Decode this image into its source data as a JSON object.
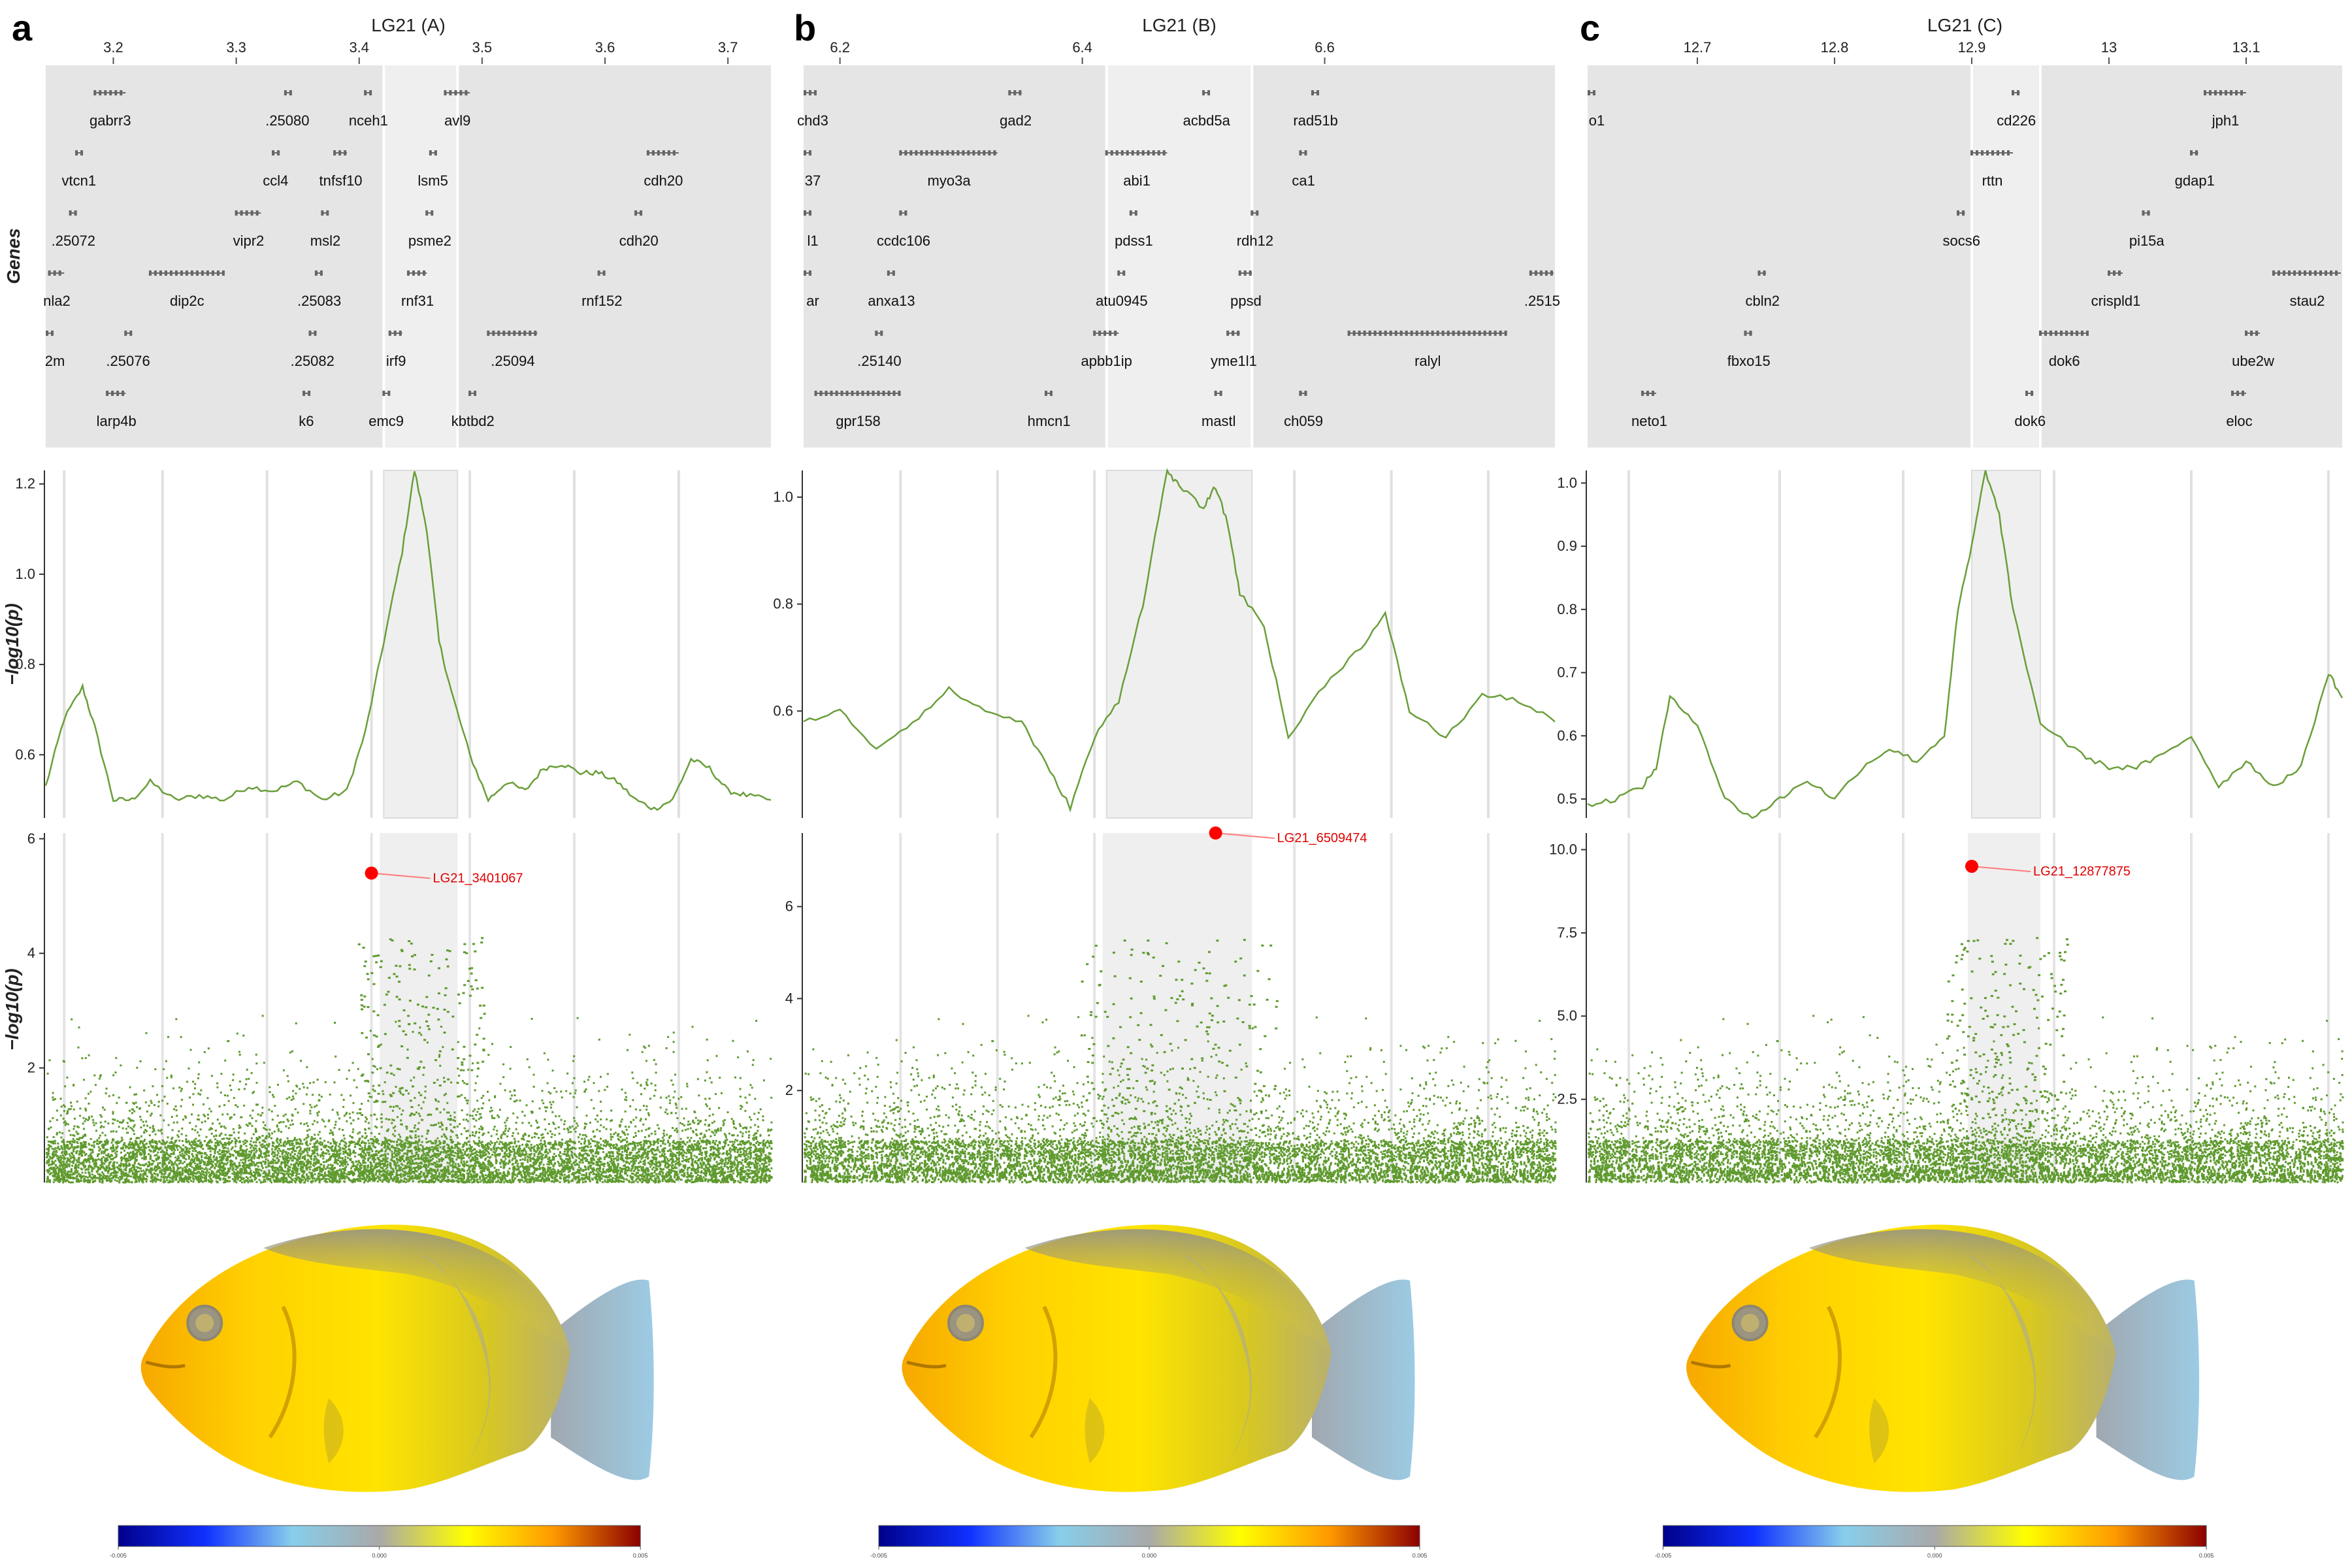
{
  "figure": {
    "y_axis_label_genes": "Genes",
    "y_axis_label_p": "−log10(p)",
    "colorbar_ticks": [
      "-0.005",
      "0.000",
      "0.005"
    ],
    "colorbar_colors": [
      "#00008b",
      "#1030ff",
      "#87ceeb",
      "#a9a9a9",
      "#ffff00",
      "#ff9900",
      "#8b0000"
    ]
  },
  "chart_data": [
    {
      "panel_label": "a",
      "title": "LG21 (A)",
      "type": "composite",
      "x_ticks": [
        3.2,
        3.3,
        3.4,
        3.5,
        3.6,
        3.7
      ],
      "xlim": [
        3.145,
        3.735
      ],
      "highlight_region": [
        3.42,
        3.48
      ],
      "gene_rows": [
        [
          {
            "label": "gabrr3",
            "start": 3.185,
            "end": 3.21
          },
          {
            "label": ".25080",
            "start": 3.34,
            "end": 3.343
          },
          {
            "label": "nceh1",
            "start": 3.405,
            "end": 3.41
          },
          {
            "label": "avl9",
            "start": 3.47,
            "end": 3.49
          }
        ],
        [
          {
            "label": "vtcn1",
            "start": 3.17,
            "end": 3.174
          },
          {
            "label": "ccl4",
            "start": 3.33,
            "end": 3.334
          },
          {
            "label": "tnfsf10",
            "start": 3.38,
            "end": 3.39
          },
          {
            "label": "lsm5",
            "start": 3.458,
            "end": 3.462
          },
          {
            "label": "cdh20",
            "start": 3.635,
            "end": 3.66
          }
        ],
        [
          {
            "label": ".25072",
            "start": 3.165,
            "end": 3.17
          },
          {
            "label": "vipr2",
            "start": 3.3,
            "end": 3.32
          },
          {
            "label": "msl2",
            "start": 3.37,
            "end": 3.375
          },
          {
            "label": "psme2",
            "start": 3.455,
            "end": 3.46
          },
          {
            "label": "cdh20",
            "start": 3.625,
            "end": 3.63
          }
        ],
        [
          {
            "label": "nla2",
            "start": 3.148,
            "end": 3.16
          },
          {
            "label": "dip2c",
            "start": 3.23,
            "end": 3.29
          },
          {
            "label": ".25083",
            "start": 3.365,
            "end": 3.37
          },
          {
            "label": "rnf31",
            "start": 3.44,
            "end": 3.455
          },
          {
            "label": "rnf152",
            "start": 3.595,
            "end": 3.6
          }
        ],
        [
          {
            "label": "2m",
            "start": 3.145,
            "end": 3.15
          },
          {
            "label": ".25076",
            "start": 3.21,
            "end": 3.214
          },
          {
            "label": ".25082",
            "start": 3.36,
            "end": 3.364
          },
          {
            "label": "irf9",
            "start": 3.425,
            "end": 3.435
          },
          {
            "label": ".25094",
            "start": 3.505,
            "end": 3.545
          }
        ],
        [
          {
            "label": "larp4b",
            "start": 3.195,
            "end": 3.21
          },
          {
            "label": "k6",
            "start": 3.355,
            "end": 3.359
          },
          {
            "label": "emc9",
            "start": 3.42,
            "end": 3.424
          },
          {
            "label": "kbtbd2",
            "start": 3.49,
            "end": 3.495
          }
        ]
      ],
      "line_series": {
        "ylim": [
          0.46,
          1.23
        ],
        "y_ticks": [
          0.6,
          0.8,
          1.0,
          1.2
        ],
        "x": [
          3.145,
          3.16,
          3.175,
          3.185,
          3.2,
          3.215,
          3.23,
          3.25,
          3.27,
          3.29,
          3.31,
          3.33,
          3.35,
          3.37,
          3.39,
          3.405,
          3.42,
          3.435,
          3.445,
          3.455,
          3.465,
          3.475,
          3.49,
          3.505,
          3.52,
          3.535,
          3.55,
          3.565,
          3.58,
          3.595,
          3.61,
          3.625,
          3.64,
          3.655,
          3.67,
          3.685,
          3.7,
          3.715,
          3.735
        ],
        "y": [
          0.53,
          0.68,
          0.75,
          0.66,
          0.5,
          0.5,
          0.54,
          0.5,
          0.51,
          0.5,
          0.53,
          0.52,
          0.54,
          0.5,
          0.52,
          0.65,
          0.85,
          1.05,
          1.23,
          1.1,
          0.85,
          0.74,
          0.6,
          0.5,
          0.54,
          0.52,
          0.57,
          0.58,
          0.56,
          0.56,
          0.54,
          0.5,
          0.48,
          0.5,
          0.59,
          0.57,
          0.52,
          0.51,
          0.5
        ]
      },
      "scatter": {
        "ylim": [
          0,
          6.1
        ],
        "y_ticks": [
          2,
          4,
          6
        ],
        "lead_snp": {
          "label": "LG21_3401067",
          "x": 3.41,
          "y": 5.4
        },
        "vertical_lines": [
          3.16,
          3.24,
          3.325,
          3.41,
          3.49,
          3.575,
          3.66
        ]
      }
    },
    {
      "panel_label": "b",
      "title": "LG21 (B)",
      "type": "composite",
      "x_ticks": [
        6.2,
        6.4,
        6.6
      ],
      "xlim": [
        6.17,
        6.79
      ],
      "highlight_region": [
        6.42,
        6.54
      ],
      "gene_rows": [
        [
          {
            "label": "chd3",
            "start": 6.17,
            "end": 6.18
          },
          {
            "label": "gad2",
            "start": 6.34,
            "end": 6.35
          },
          {
            "label": "acbd5a",
            "start": 6.5,
            "end": 6.505
          },
          {
            "label": "rad51b",
            "start": 6.59,
            "end": 6.595
          }
        ],
        [
          {
            "label": "37",
            "start": 6.17,
            "end": 6.172
          },
          {
            "label": "myo3a",
            "start": 6.25,
            "end": 6.33
          },
          {
            "label": "abi1",
            "start": 6.42,
            "end": 6.47
          },
          {
            "label": "ca1",
            "start": 6.58,
            "end": 6.585
          }
        ],
        [
          {
            "label": "l1",
            "start": 6.17,
            "end": 6.172
          },
          {
            "label": "ccdc106",
            "start": 6.25,
            "end": 6.255
          },
          {
            "label": "pdss1",
            "start": 6.44,
            "end": 6.445
          },
          {
            "label": "rdh12",
            "start": 6.54,
            "end": 6.545
          }
        ],
        [
          {
            "label": "ar",
            "start": 6.17,
            "end": 6.172
          },
          {
            "label": "anxa13",
            "start": 6.24,
            "end": 6.245
          },
          {
            "label": "atu0945",
            "start": 6.43,
            "end": 6.435
          },
          {
            "label": "ppsd",
            "start": 6.53,
            "end": 6.54
          },
          {
            "label": ".2515",
            "start": 6.77,
            "end": 6.79
          }
        ],
        [
          {
            "label": ".25140",
            "start": 6.23,
            "end": 6.235
          },
          {
            "label": "apbb1ip",
            "start": 6.41,
            "end": 6.43
          },
          {
            "label": "yme1l1",
            "start": 6.52,
            "end": 6.53
          },
          {
            "label": "ralyl",
            "start": 6.62,
            "end": 6.75
          }
        ],
        [
          {
            "label": "gpr158",
            "start": 6.18,
            "end": 6.25
          },
          {
            "label": "hmcn1",
            "start": 6.37,
            "end": 6.375
          },
          {
            "label": "mastl",
            "start": 6.51,
            "end": 6.515
          },
          {
            "label": "ch059",
            "start": 6.58,
            "end": 6.585
          }
        ]
      ],
      "line_series": {
        "ylim": [
          0.4,
          1.05
        ],
        "y_ticks": [
          0.6,
          0.8,
          1.0
        ],
        "x": [
          6.17,
          6.2,
          6.23,
          6.26,
          6.29,
          6.32,
          6.35,
          6.37,
          6.39,
          6.41,
          6.43,
          6.45,
          6.47,
          6.48,
          6.5,
          6.51,
          6.52,
          6.53,
          6.55,
          6.57,
          6.6,
          6.63,
          6.65,
          6.67,
          6.7,
          6.73,
          6.76,
          6.79
        ],
        "y": [
          0.58,
          0.6,
          0.53,
          0.58,
          0.64,
          0.6,
          0.58,
          0.5,
          0.42,
          0.55,
          0.62,
          0.8,
          1.05,
          1.02,
          0.98,
          1.02,
          0.95,
          0.82,
          0.76,
          0.55,
          0.65,
          0.72,
          0.78,
          0.6,
          0.55,
          0.63,
          0.62,
          0.58
        ]
      },
      "scatter": {
        "ylim": [
          0,
          7.6
        ],
        "y_ticks": [
          2,
          4,
          6
        ],
        "lead_snp": {
          "label": "LG21_6509474",
          "x": 6.51,
          "y": 7.6
        },
        "vertical_lines": [
          6.25,
          6.33,
          6.41,
          6.49,
          6.575,
          6.655,
          6.735
        ]
      }
    },
    {
      "panel_label": "c",
      "title": "LG21 (C)",
      "type": "composite",
      "x_ticks": [
        12.7,
        12.8,
        12.9,
        13,
        13.1
      ],
      "xlim": [
        12.62,
        13.17
      ],
      "highlight_region": [
        12.9,
        12.95
      ],
      "gene_rows": [
        [
          {
            "label": "o1",
            "start": 12.62,
            "end": 12.622
          },
          {
            "label": "cd226",
            "start": 12.93,
            "end": 12.935
          },
          {
            "label": "jph1",
            "start": 13.07,
            "end": 13.1
          }
        ],
        [
          {
            "label": "rttn",
            "start": 12.9,
            "end": 12.93
          },
          {
            "label": "gdap1",
            "start": 13.06,
            "end": 13.065
          }
        ],
        [
          {
            "label": "socs6",
            "start": 12.89,
            "end": 12.895
          },
          {
            "label": "pi15a",
            "start": 13.025,
            "end": 13.03
          }
        ],
        [
          {
            "label": "cbln2",
            "start": 12.745,
            "end": 12.75
          },
          {
            "label": "crispld1",
            "start": 13.0,
            "end": 13.01
          },
          {
            "label": "stau2",
            "start": 13.12,
            "end": 13.17
          }
        ],
        [
          {
            "label": "fbxo15",
            "start": 12.735,
            "end": 12.74
          },
          {
            "label": "dok6",
            "start": 12.95,
            "end": 12.985
          },
          {
            "label": "ube2w",
            "start": 13.1,
            "end": 13.11
          }
        ],
        [
          {
            "label": "neto1",
            "start": 12.66,
            "end": 12.67
          },
          {
            "label": "dok6",
            "start": 12.94,
            "end": 12.945
          },
          {
            "label": "eloc",
            "start": 13.09,
            "end": 13.1
          }
        ]
      ],
      "line_series": {
        "ylim": [
          0.47,
          1.02
        ],
        "y_ticks": [
          0.5,
          0.6,
          0.7,
          0.8,
          0.9,
          1.0
        ],
        "x": [
          12.62,
          12.64,
          12.66,
          12.67,
          12.68,
          12.7,
          12.72,
          12.74,
          12.76,
          12.78,
          12.8,
          12.82,
          12.84,
          12.86,
          12.88,
          12.89,
          12.9,
          12.91,
          12.92,
          12.93,
          12.95,
          12.98,
          13.0,
          13.02,
          13.04,
          13.06,
          13.08,
          13.1,
          13.12,
          13.14,
          13.16,
          13.17
        ],
        "y": [
          0.49,
          0.5,
          0.52,
          0.55,
          0.66,
          0.62,
          0.5,
          0.47,
          0.5,
          0.53,
          0.5,
          0.55,
          0.58,
          0.56,
          0.6,
          0.8,
          0.9,
          1.02,
          0.95,
          0.8,
          0.62,
          0.57,
          0.55,
          0.55,
          0.57,
          0.6,
          0.52,
          0.56,
          0.52,
          0.55,
          0.7,
          0.66
        ]
      },
      "scatter": {
        "ylim": [
          0,
          10.5
        ],
        "y_ticks": [
          2.5,
          5.0,
          7.5,
          10.0
        ],
        "lead_snp": {
          "label": "LG21_12877875",
          "x": 12.9,
          "y": 9.5
        },
        "vertical_lines": [
          12.65,
          12.76,
          12.85,
          12.96,
          13.06,
          13.16
        ]
      }
    }
  ]
}
